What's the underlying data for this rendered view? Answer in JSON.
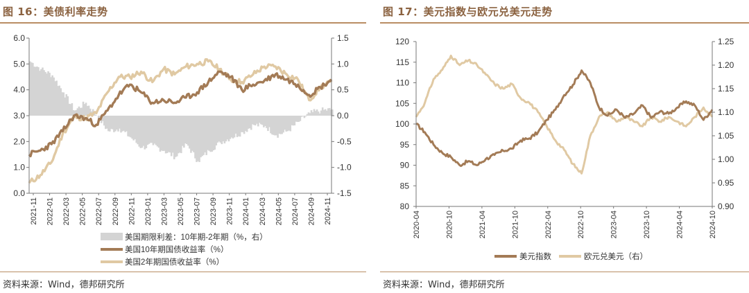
{
  "left": {
    "fig_title": "图 16：美债利率走势",
    "source": "资料来源：Wind，德邦研究所",
    "colors": {
      "ten_year": "#a37b56",
      "two_year": "#e0c9a3",
      "spread": "#d4d4d4",
      "title": "#8b6240"
    },
    "chart_data": {
      "type": "line",
      "x_ticks": [
        "2021-11",
        "2022-01",
        "2022-03",
        "2022-05",
        "2022-07",
        "2022-09",
        "2022-11",
        "2023-01",
        "2023-03",
        "2023-05",
        "2023-07",
        "2023-09",
        "2023-11",
        "2024-01",
        "2024-03",
        "2024-05",
        "2024-07",
        "2024-09",
        "2024-11"
      ],
      "y_left": {
        "lim": [
          0,
          6.0
        ],
        "ticks": [
          "0.0",
          "1.0",
          "2.0",
          "3.0",
          "4.0",
          "5.0",
          "6.0"
        ]
      },
      "y_right": {
        "lim": [
          -1.5,
          1.5
        ],
        "ticks": [
          "-1.5",
          "-1.0",
          "-0.5",
          "0.0",
          "0.5",
          "1.0",
          "1.5"
        ]
      },
      "legend_entries": [
        "美国期限利差：10年期-2年期（%，右）",
        "美国10年期国债收益率（%）",
        "美国2年期国债收益率（%）"
      ],
      "series": [
        {
          "name": "美国期限利差：10年期-2年期（%，右）",
          "kind": "area",
          "axis": "right",
          "values": [
            1.05,
            0.9,
            0.78,
            0.45,
            0.1,
            0.25,
            0.0,
            -0.3,
            -0.25,
            -0.42,
            -0.62,
            -0.57,
            -0.68,
            -0.8,
            -0.55,
            -0.88,
            -0.68,
            -0.52,
            -0.42,
            -0.32,
            -0.18,
            -0.2,
            -0.38,
            -0.3,
            -0.12,
            0.05,
            0.1,
            0.12
          ]
        },
        {
          "name": "美国10年期国债收益率（%）",
          "kind": "line",
          "axis": "left",
          "values": [
            1.5,
            1.65,
            1.9,
            2.4,
            3.0,
            2.9,
            2.65,
            3.2,
            3.8,
            4.2,
            3.9,
            3.5,
            3.6,
            3.5,
            3.7,
            3.9,
            4.3,
            4.7,
            4.5,
            4.0,
            4.2,
            4.35,
            4.6,
            4.4,
            4.2,
            3.8,
            4.1,
            4.4
          ]
        },
        {
          "name": "美国2年期国债收益率（%）",
          "kind": "line",
          "axis": "left",
          "values": [
            0.4,
            0.7,
            1.2,
            2.3,
            2.95,
            2.9,
            3.1,
            3.9,
            4.5,
            4.5,
            4.7,
            4.3,
            4.8,
            4.6,
            4.9,
            5.0,
            5.1,
            4.8,
            4.4,
            4.3,
            4.6,
            4.9,
            4.9,
            4.6,
            4.4,
            3.6,
            4.1,
            4.3
          ]
        }
      ]
    }
  },
  "right": {
    "fig_title": "图 17：美元指数与欧元兑美元走势",
    "source": "资料来源：Wind，德邦研究所",
    "colors": {
      "dxy": "#a37b56",
      "eurusd": "#e0c9a3",
      "title": "#8b6240"
    },
    "chart_data": {
      "type": "line",
      "x_ticks": [
        "2020-04",
        "2020-10",
        "2021-04",
        "2021-10",
        "2022-04",
        "2022-10",
        "2023-04",
        "2023-10",
        "2024-04",
        "2024-10"
      ],
      "y_left": {
        "lim": [
          80,
          120
        ],
        "ticks": [
          "80",
          "85",
          "90",
          "95",
          "100",
          "105",
          "110",
          "115",
          "120"
        ]
      },
      "y_right": {
        "lim": [
          0.9,
          1.25
        ],
        "ticks": [
          "0.90",
          "0.95",
          "1.00",
          "1.05",
          "1.10",
          "1.15",
          "1.20",
          "1.25"
        ]
      },
      "legend_entries": [
        "美元指数",
        "欧元兑美元（右）"
      ],
      "series": [
        {
          "name": "美元指数",
          "axis": "left",
          "values": [
            100,
            98,
            95,
            93,
            92,
            90,
            91,
            90,
            91.5,
            92.5,
            93.5,
            94,
            96,
            96.5,
            98,
            101,
            103.5,
            107,
            109.5,
            113,
            110,
            104,
            102,
            103.5,
            101.5,
            102.5,
            104.5,
            101.5,
            103,
            102.5,
            104,
            105.5,
            104.5,
            101,
            103.5
          ]
        },
        {
          "name": "欧元兑美元（右）",
          "axis": "right",
          "values": [
            1.09,
            1.12,
            1.17,
            1.19,
            1.22,
            1.2,
            1.21,
            1.2,
            1.18,
            1.16,
            1.15,
            1.16,
            1.13,
            1.12,
            1.1,
            1.07,
            1.04,
            1.02,
            0.99,
            0.97,
            1.05,
            1.09,
            1.1,
            1.08,
            1.09,
            1.08,
            1.07,
            1.09,
            1.08,
            1.09,
            1.08,
            1.07,
            1.09,
            1.11,
            1.09
          ]
        }
      ]
    }
  }
}
